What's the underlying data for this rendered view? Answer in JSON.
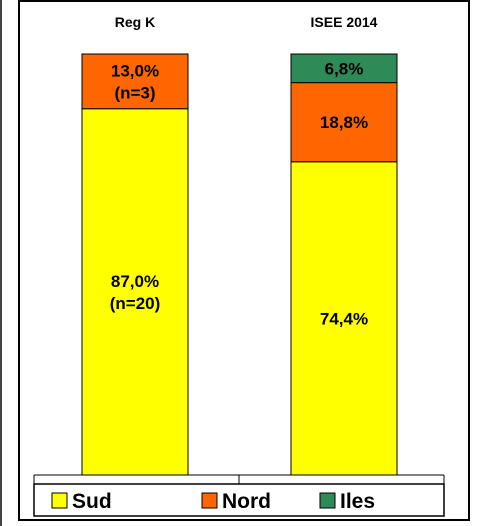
{
  "chart_data": {
    "type": "bar",
    "stacked": true,
    "percent": true,
    "categories": [
      "Reg K",
      "ISEE 2014"
    ],
    "series": [
      {
        "name": "Sud",
        "color": "#FFFF00",
        "values": [
          87.0,
          74.4
        ],
        "labels": [
          "87,0%\n(n=20)",
          "74,4%"
        ]
      },
      {
        "name": "Nord",
        "color": "#FF6600",
        "values": [
          13.0,
          18.8
        ],
        "labels": [
          "13,0%\n(n=3)",
          "18,8%"
        ]
      },
      {
        "name": "Iles",
        "color": "#2E8B57",
        "values": [
          0,
          6.8
        ],
        "labels": [
          "",
          "6,8%"
        ]
      }
    ],
    "ylim": [
      0,
      100
    ],
    "grid": false,
    "legend_position": "bottom"
  }
}
